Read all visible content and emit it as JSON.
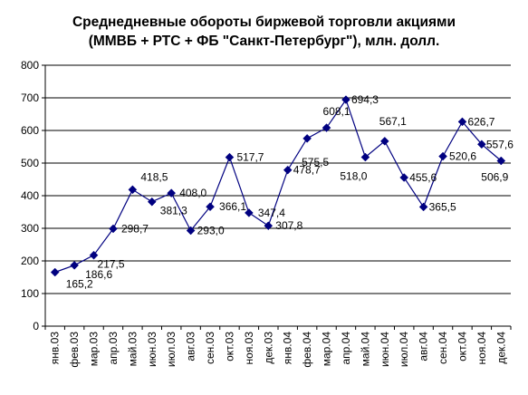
{
  "chart_data": {
    "type": "line",
    "title": [
      "Среднедневные обороты биржевой торговли акциями",
      "(ММВБ + РТС + ФБ \"Санкт-Петербург\"), млн. долл."
    ],
    "categories": [
      "янв.03",
      "фев.03",
      "мар.03",
      "апр.03",
      "май.03",
      "июн.03",
      "июл.03",
      "авг.03",
      "сен.03",
      "окт.03",
      "ноя.03",
      "дек.03",
      "янв.04",
      "фев.04",
      "мар.04",
      "апр.04",
      "май.04",
      "июн.04",
      "июл.04",
      "авг.04",
      "сен.04",
      "окт.04",
      "ноя.04",
      "дек.04"
    ],
    "values": [
      165.2,
      186.6,
      217.5,
      298.7,
      418.5,
      381.3,
      408.0,
      293.0,
      366.1,
      517.7,
      347.4,
      307.8,
      478.7,
      575.5,
      608.1,
      694.3,
      518.0,
      567.1,
      455.6,
      365.5,
      520.6,
      626.7,
      557.6,
      506.9
    ],
    "data_labels": [
      "165,2",
      "186,6",
      "217,5",
      "298,7",
      "418,5",
      "381,3",
      "408,0",
      "293,0",
      "366,1",
      "517,7",
      "347,4",
      "307,8",
      "478,7",
      "575,5",
      "608,1",
      "694,3",
      "518,0",
      "567,1",
      "455,6",
      "365,5",
      "520,6",
      "626,7",
      "557,6",
      "506,9"
    ],
    "y_ticks": [
      "0",
      "100",
      "200",
      "300",
      "400",
      "500",
      "600",
      "700",
      "800"
    ],
    "ylim": [
      0,
      800
    ],
    "grid": true,
    "legend": "none",
    "line_color": "#000080",
    "marker_color": "#000080",
    "marker": "diamond"
  }
}
